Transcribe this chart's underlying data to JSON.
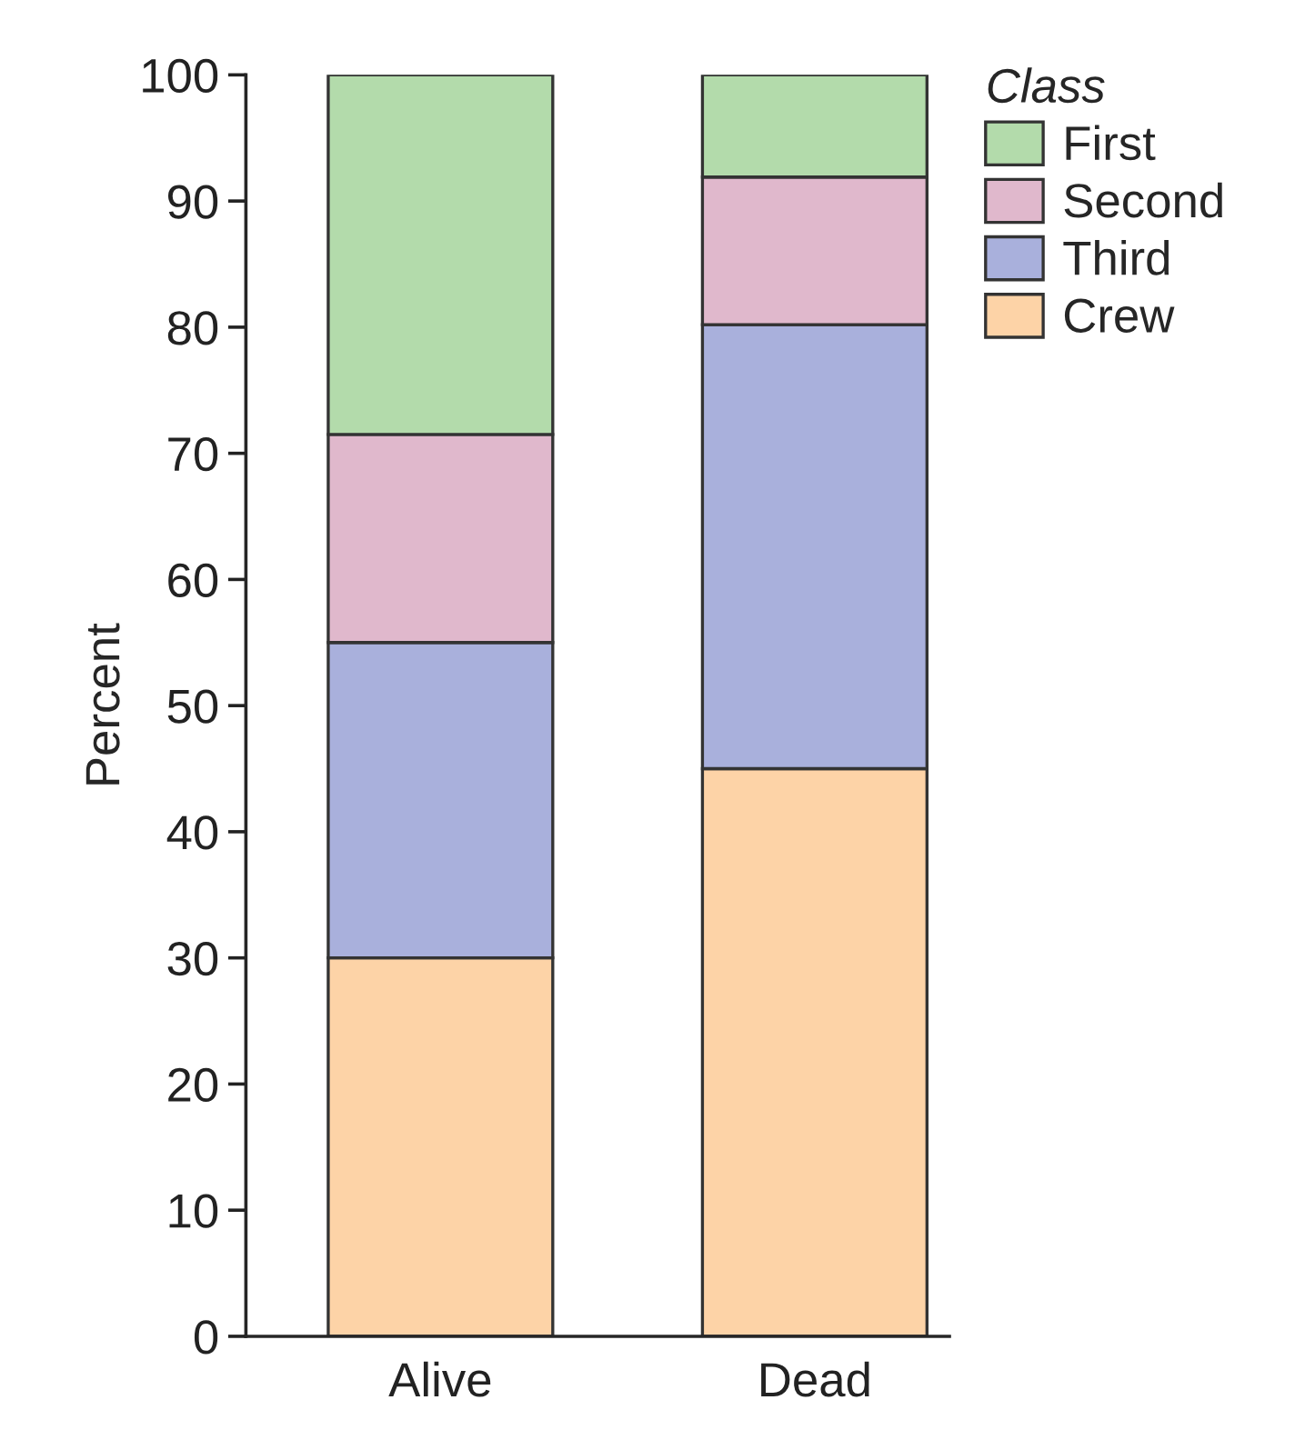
{
  "chart_data": {
    "type": "bar",
    "stacked": true,
    "ylabel": "Percent",
    "legend_title": "Class",
    "legend": "top right",
    "categories": [
      "Alive",
      "Dead"
    ],
    "series": [
      {
        "name": "Crew",
        "color": "#fdd3a7",
        "values": [
          30,
          45
        ]
      },
      {
        "name": "Third",
        "color": "#a9b0dc",
        "values": [
          25,
          35.2
        ]
      },
      {
        "name": "Second",
        "color": "#e0b8cc",
        "values": [
          16.5,
          11.7
        ]
      },
      {
        "name": "First",
        "color": "#b3dbab",
        "values": [
          28.5,
          8.1
        ]
      }
    ],
    "ylim": [
      0,
      100
    ],
    "yticks": [
      0,
      10,
      20,
      30,
      40,
      50,
      60,
      70,
      80,
      90,
      100
    ]
  }
}
